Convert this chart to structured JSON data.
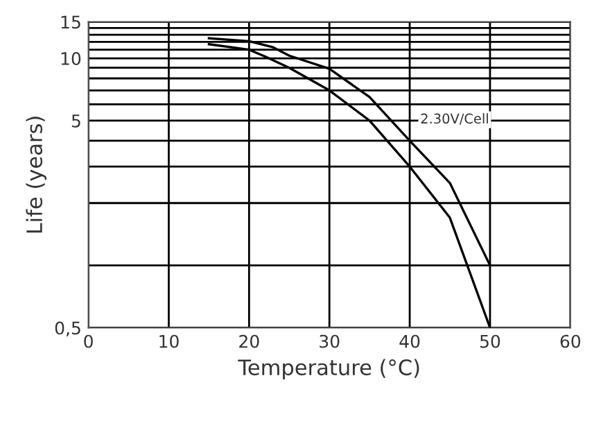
{
  "chart_data": {
    "type": "line",
    "xlabel": "Temperature (°C)",
    "ylabel": "Life (years)",
    "log": "y",
    "series": [
      {
        "color": "#000000",
        "x": [
          15,
          20,
          23,
          25,
          30,
          35,
          40,
          45,
          50
        ],
        "values": [
          12.5,
          12.1,
          11.3,
          10.3,
          8.9,
          6.5,
          4,
          2.5,
          1
        ]
      },
      {
        "color": "#000000",
        "x": [
          15,
          20,
          22,
          25,
          30,
          35,
          40,
          45,
          50
        ],
        "values": [
          11.7,
          11,
          10.2,
          9,
          7,
          5,
          3,
          1.7,
          0.5
        ]
      }
    ],
    "xlim": [
      0,
      60
    ],
    "xticks": [
      0,
      10,
      20,
      30,
      40,
      50,
      60
    ],
    "ylim": [
      0.5,
      15
    ],
    "yticks": [
      {
        "value": 0.5,
        "label": "0,5"
      },
      {
        "value": 1,
        "label": null
      },
      {
        "value": 2,
        "label": null
      },
      {
        "value": 3,
        "label": null
      },
      {
        "value": 4,
        "label": null
      },
      5,
      {
        "value": 6,
        "label": null
      },
      {
        "value": 7,
        "label": null
      },
      {
        "value": 8,
        "label": null
      },
      {
        "value": 9,
        "label": null
      },
      10,
      {
        "value": 11,
        "label": null
      },
      {
        "value": 12,
        "label": null
      },
      {
        "value": 13,
        "label": null
      },
      {
        "value": 14,
        "label": null
      },
      15
    ],
    "grid": true,
    "marker": "none",
    "line_style": "solid",
    "annotations": [
      "2.30V/Cell"
    ]
  }
}
